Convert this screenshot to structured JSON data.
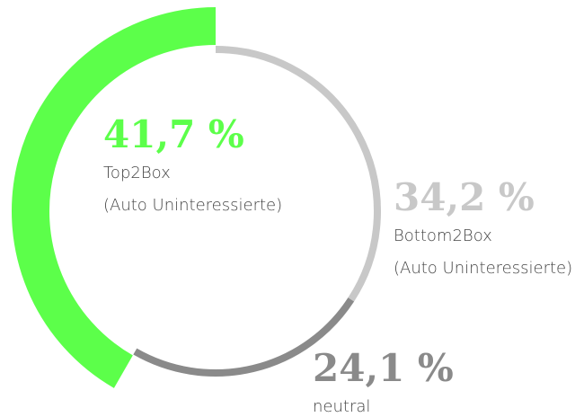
{
  "chart_data": {
    "type": "donut",
    "categories": [
      "Top2Box",
      "Bottom2Box",
      "neutral"
    ],
    "category_notes": [
      "(Auto Uninteressierte)",
      "(Auto Uninteressierte)",
      null
    ],
    "values": [
      41.7,
      34.2,
      24.1
    ],
    "value_labels": [
      "41,7 %",
      "34,2 %",
      "24,1 %"
    ],
    "colors": [
      "#5cff4a",
      "#c8c8c8",
      "#8a8a8a"
    ]
  }
}
